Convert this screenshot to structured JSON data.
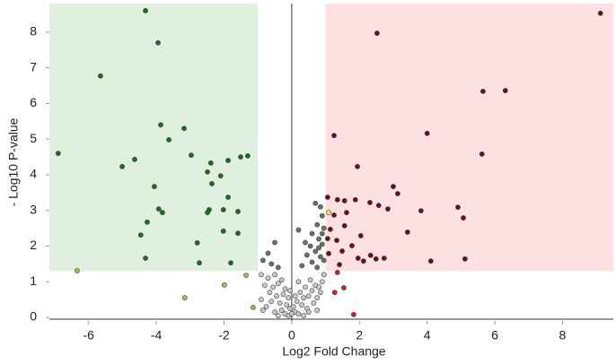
{
  "chart_data": {
    "type": "scatter",
    "x_label": "Log2 Fold Change",
    "y_label": "- Log10 P-value",
    "xlim": [
      -7.16,
      9.5
    ],
    "ylim": [
      -0.1,
      8.8
    ],
    "xticks": [
      -6,
      -4,
      -2,
      0,
      2,
      4,
      6,
      8
    ],
    "yticks": [
      0,
      1,
      2,
      3,
      4,
      5,
      6,
      7,
      8
    ],
    "grid": false,
    "regions": [
      {
        "color": "#dff0df",
        "xlim": [
          -7.16,
          -1
        ],
        "ylim": [
          1.3,
          8.8
        ]
      },
      {
        "color": "#fde0e2",
        "xlim": [
          1,
          9.5
        ],
        "ylim": [
          1.3,
          8.8
        ]
      }
    ],
    "series": [
      {
        "color": "#1f6b1f",
        "x": [
          -4.32,
          -3.95,
          -5.65,
          -6.9,
          -3.87,
          -3.18,
          -3.63,
          -4.64,
          -5.01,
          -2.97,
          -2.39,
          -1.88,
          -1.51,
          -1.3,
          -2.49,
          -2.1,
          -4.06,
          -2.36,
          -1.88,
          -3.93,
          -3.82,
          -2.44,
          -2.49,
          -2.02,
          -4.27,
          -1.59,
          -4.46,
          -2.79,
          -2.02,
          -1.59,
          -4.32,
          -2.73,
          -1.8
        ],
        "values": [
          8.6,
          7.7,
          6.77,
          4.6,
          5.4,
          5.3,
          4.98,
          4.43,
          4.23,
          4.55,
          4.33,
          4.4,
          4.5,
          4.53,
          4.08,
          3.97,
          3.67,
          3.75,
          3.37,
          3.04,
          2.94,
          3.02,
          2.94,
          3.02,
          2.67,
          2.97,
          2.31,
          2.09,
          2.42,
          2.36,
          1.66,
          1.53,
          1.53
        ]
      },
      {
        "color": "#6b0f14",
        "x": [
          9.12,
          2.52,
          5.65,
          6.31,
          1.25,
          4.0,
          1.94,
          5.62,
          3.0,
          3.13,
          1.06,
          1.35,
          1.56,
          1.88,
          2.31,
          2.57,
          2.84,
          3.82,
          4.91,
          5.07,
          1.25,
          1.62,
          1.14,
          1.56,
          3.42,
          1.06,
          2.04,
          1.33,
          1.78,
          1.09,
          1.49,
          1.96,
          2.12,
          2.33,
          2.49,
          2.73,
          4.11,
          5.12,
          1.41
        ],
        "values": [
          8.53,
          7.97,
          6.34,
          6.36,
          5.1,
          5.16,
          4.23,
          4.58,
          3.67,
          3.47,
          3.37,
          3.3,
          3.27,
          3.3,
          3.22,
          3.14,
          3.04,
          2.99,
          3.09,
          2.79,
          2.87,
          2.94,
          2.47,
          2.57,
          2.39,
          2.21,
          2.29,
          2.16,
          2.01,
          1.79,
          1.86,
          1.66,
          1.58,
          1.74,
          1.64,
          1.66,
          1.58,
          1.64,
          1.48
        ]
      },
      {
        "color": "#cc1f26",
        "x": [
          1.35,
          1.54,
          1.27,
          1.83
        ],
        "values": [
          1.26,
          0.83,
          0.7,
          0.08
        ]
      },
      {
        "color": "#a9b84c",
        "x": [
          -6.34,
          -3.16,
          -1.99,
          -1.35,
          -1.14
        ],
        "values": [
          1.31,
          0.55,
          0.91,
          1.18,
          0.28
        ]
      },
      {
        "color": "#6e6e6e",
        "x": [
          0.7,
          0.85,
          0.9,
          0.75,
          0.95,
          0.6,
          0.8,
          0.9,
          0.55,
          0.7,
          0.45,
          0.85,
          0.6,
          0.3,
          0.75,
          0.95,
          0.4,
          0.2,
          -0.5,
          -0.7,
          -0.85,
          -0.6,
          -0.4,
          0.8,
          0.9
        ],
        "values": [
          3.2,
          3.1,
          2.85,
          2.6,
          2.5,
          2.35,
          2.2,
          2.05,
          2.0,
          1.85,
          1.75,
          1.7,
          1.55,
          1.45,
          1.4,
          1.6,
          2.1,
          2.45,
          2.1,
          1.8,
          1.6,
          1.5,
          1.4,
          1.95,
          2.35
        ]
      },
      {
        "color": "#c8c8c8",
        "x": [
          -0.9,
          -0.7,
          -0.5,
          -0.3,
          -0.8,
          -0.55,
          -0.4,
          -0.2,
          -0.65,
          -0.45,
          -0.25,
          -0.1,
          -0.9,
          -0.6,
          -0.35,
          -0.15,
          -0.05,
          -0.3,
          -0.5,
          -0.75,
          0.1,
          0.05,
          0.15,
          0.2,
          0.3,
          0.45,
          0.35,
          0.5,
          0.6,
          0.7,
          0.8,
          0.9,
          0.55,
          0.4,
          0.25,
          0.65,
          0.75,
          0.85,
          0.95,
          0.2,
          -0.1,
          0.0,
          -0.2,
          0.1,
          -0.05,
          0.5,
          0.35,
          -0.4,
          0.75,
          -0.85
        ],
        "values": [
          1.2,
          1.1,
          1.2,
          1.05,
          0.9,
          0.85,
          0.95,
          0.8,
          0.7,
          0.6,
          0.65,
          0.55,
          0.5,
          0.45,
          0.4,
          0.35,
          0.25,
          0.2,
          0.15,
          0.3,
          0.15,
          0.3,
          0.45,
          0.1,
          0.35,
          0.25,
          0.55,
          0.6,
          0.75,
          0.9,
          0.85,
          1.0,
          1.05,
          0.85,
          0.7,
          0.4,
          0.55,
          0.7,
          1.2,
          1.0,
          0.05,
          0.1,
          0.1,
          0.6,
          0.75,
          0.15,
          0.05,
          0.05,
          0.2,
          0.2
        ]
      },
      {
        "color": "#f4e04a",
        "x": [
          1.09
        ],
        "values": [
          2.94
        ]
      }
    ]
  }
}
